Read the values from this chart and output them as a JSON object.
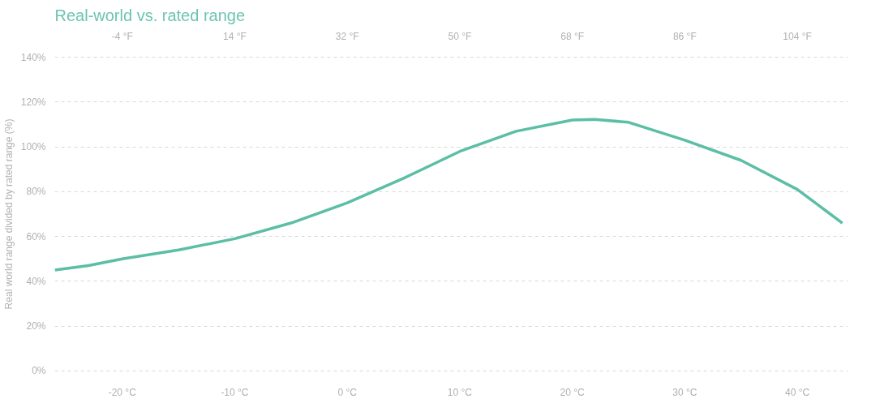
{
  "chart_data": {
    "type": "line",
    "title": "Real-world vs. rated range",
    "ylabel": "Real world range divided by rated range (%)",
    "x": [
      -26,
      -23,
      -20,
      -15,
      -10,
      -5,
      0,
      5,
      10,
      15,
      20,
      22,
      25,
      30,
      35,
      40,
      44
    ],
    "series": [
      {
        "color": "#5bbea5",
        "values": [
          45,
          47,
          50,
          54,
          59,
          66,
          75,
          86,
          98,
          107,
          112,
          112.3,
          111,
          103,
          94,
          81,
          66
        ]
      }
    ],
    "xlim": [
      -26,
      44.5
    ],
    "xticks": [
      {
        "value": -20,
        "label": "-20 °C"
      },
      {
        "value": -10,
        "label": "-10 °C"
      },
      {
        "value": 0,
        "label": "0 °C"
      },
      {
        "value": 10,
        "label": "10 °C"
      },
      {
        "value": 20,
        "label": "20 °C"
      },
      {
        "value": 30,
        "label": "30 °C"
      },
      {
        "value": 40,
        "label": "40 °C"
      }
    ],
    "x2lim": [
      -14.8,
      112.1
    ],
    "x2ticks": [
      {
        "value": -4,
        "label": "-4 °F"
      },
      {
        "value": 14,
        "label": "14 °F"
      },
      {
        "value": 32,
        "label": "32 °F"
      },
      {
        "value": 50,
        "label": "50 °F"
      },
      {
        "value": 68,
        "label": "68 °F"
      },
      {
        "value": 86,
        "label": "86 °F"
      },
      {
        "value": 104,
        "label": "104 °F"
      }
    ],
    "ylim": [
      0,
      140
    ],
    "yticks": [
      {
        "value": 0,
        "label": "0%"
      },
      {
        "value": 20,
        "label": "20%"
      },
      {
        "value": 40,
        "label": "40%"
      },
      {
        "value": 60,
        "label": "60%"
      },
      {
        "value": 80,
        "label": "80%"
      },
      {
        "value": 100,
        "label": "100%"
      },
      {
        "value": 120,
        "label": "120%"
      },
      {
        "value": 140,
        "label": "140%"
      }
    ],
    "grid": "y",
    "line_style": "solid",
    "marker": "none"
  }
}
